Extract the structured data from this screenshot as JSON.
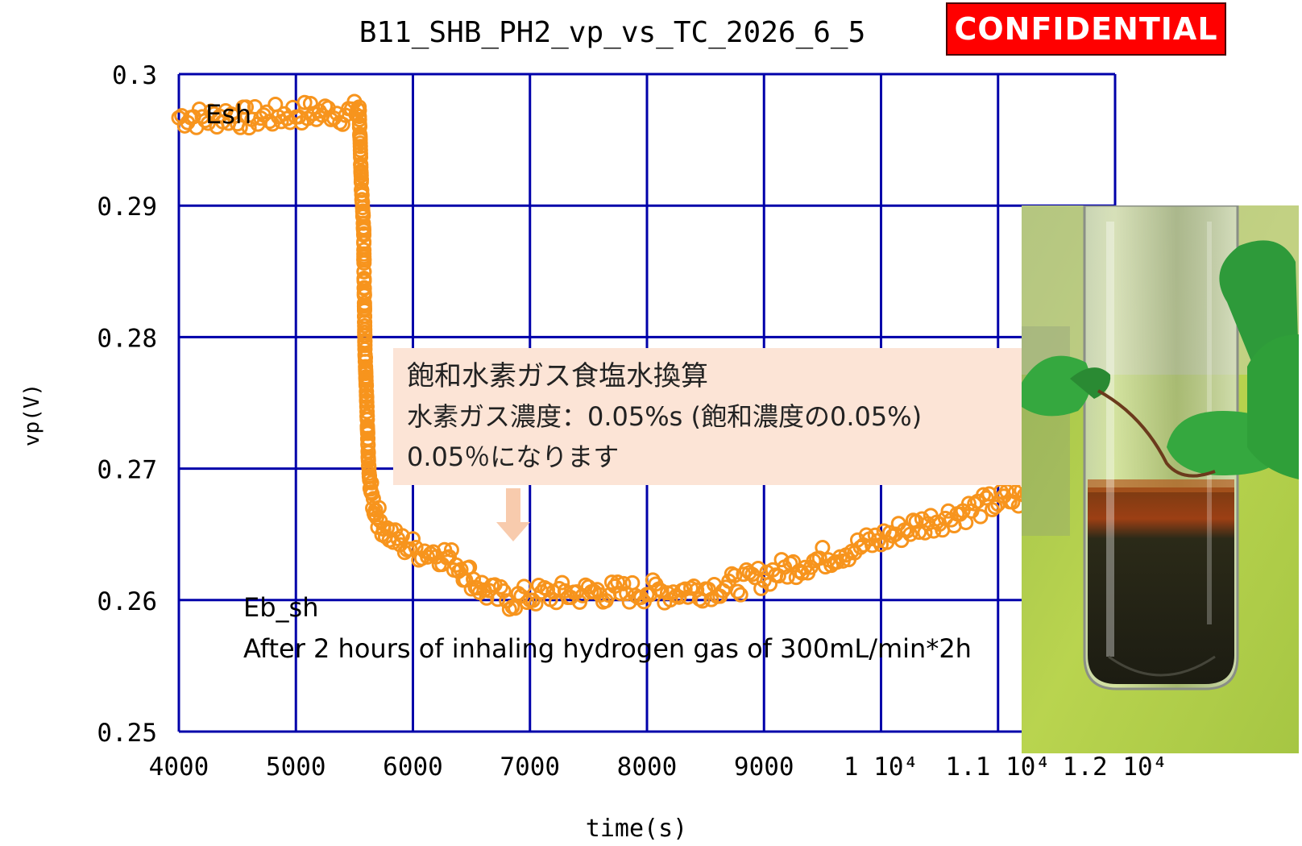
{
  "stamp": "CONFIDENTIAL",
  "callout": {
    "line1": "飽和水素ガス食塩水換算",
    "line2": "水素ガス濃度：0.05%s (飽和濃度の0.05%)",
    "line3": "0.05％になります"
  },
  "annotations": {
    "esh": "Esh",
    "eb_sh": "Eb_sh",
    "note": "After 2 hours of inhaling hydrogen gas of 300mL/min*2h"
  },
  "photo": {
    "icon": "test-tube-photo"
  },
  "chart_data": {
    "type": "scatter",
    "title": "B11_SHB_PH2_vp_vs_TC_2026_6_5",
    "xlabel": "time(s)",
    "ylabel": "vp(V)",
    "xlim": [
      4000,
      12000
    ],
    "ylim": [
      0.25,
      0.3
    ],
    "grid": true,
    "marker_color": "#f7941d",
    "axis_color": "#0000aa",
    "x_ticks": [
      4000,
      5000,
      6000,
      7000,
      8000,
      9000,
      10000,
      11000,
      12000
    ],
    "x_tick_labels": [
      "4000",
      "5000",
      "6000",
      "7000",
      "8000",
      "9000",
      "1 10⁴",
      "1.1 10⁴",
      "1.2 10⁴"
    ],
    "y_ticks": [
      0.25,
      0.26,
      0.27,
      0.28,
      0.29,
      0.3
    ],
    "y_tick_labels": [
      "0.25",
      "0.26",
      "0.27",
      "0.28",
      "0.29",
      "0.3"
    ],
    "series": [
      {
        "values": [
          [
            4000,
            0.2967
          ],
          [
            4100,
            0.2968
          ],
          [
            4200,
            0.2966
          ],
          [
            4300,
            0.2967
          ],
          [
            4400,
            0.2969
          ],
          [
            4500,
            0.2968
          ],
          [
            4600,
            0.2966
          ],
          [
            4700,
            0.2968
          ],
          [
            4800,
            0.2968
          ],
          [
            4900,
            0.2969
          ],
          [
            5000,
            0.297
          ],
          [
            5100,
            0.2971
          ],
          [
            5200,
            0.297
          ],
          [
            5300,
            0.2972
          ],
          [
            5400,
            0.297
          ],
          [
            5500,
            0.2971
          ],
          [
            5540,
            0.2975
          ],
          [
            5550,
            0.2945
          ],
          [
            5555,
            0.293
          ],
          [
            5560,
            0.2915
          ],
          [
            5565,
            0.2905
          ],
          [
            5570,
            0.2898
          ],
          [
            5575,
            0.289
          ],
          [
            5580,
            0.288
          ],
          [
            5583,
            0.2845
          ],
          [
            5586,
            0.2828
          ],
          [
            5590,
            0.279
          ],
          [
            5595,
            0.278
          ],
          [
            5600,
            0.2765
          ],
          [
            5605,
            0.2752
          ],
          [
            5610,
            0.2735
          ],
          [
            5615,
            0.272
          ],
          [
            5620,
            0.2705
          ],
          [
            5630,
            0.269
          ],
          [
            5650,
            0.2678
          ],
          [
            5680,
            0.2668
          ],
          [
            5720,
            0.266
          ],
          [
            5780,
            0.2652
          ],
          [
            5850,
            0.2646
          ],
          [
            5950,
            0.2641
          ],
          [
            6050,
            0.2638
          ],
          [
            6150,
            0.2637
          ],
          [
            6250,
            0.2635
          ],
          [
            6350,
            0.263
          ],
          [
            6450,
            0.2622
          ],
          [
            6550,
            0.2612
          ],
          [
            6650,
            0.2605
          ],
          [
            6750,
            0.2602
          ],
          [
            6850,
            0.26
          ],
          [
            6950,
            0.2602
          ],
          [
            7100,
            0.2604
          ],
          [
            7250,
            0.2605
          ],
          [
            7400,
            0.2605
          ],
          [
            7550,
            0.2606
          ],
          [
            7700,
            0.2606
          ],
          [
            7850,
            0.2606
          ],
          [
            8000,
            0.2607
          ],
          [
            8150,
            0.2606
          ],
          [
            8300,
            0.2607
          ],
          [
            8450,
            0.2608
          ],
          [
            8600,
            0.261
          ],
          [
            8750,
            0.2612
          ],
          [
            8900,
            0.2615
          ],
          [
            9050,
            0.262
          ],
          [
            9200,
            0.2624
          ],
          [
            9350,
            0.2628
          ],
          [
            9500,
            0.2632
          ],
          [
            9650,
            0.2636
          ],
          [
            9800,
            0.264
          ],
          [
            9950,
            0.2645
          ],
          [
            10100,
            0.265
          ],
          [
            10250,
            0.2655
          ],
          [
            10400,
            0.2659
          ],
          [
            10550,
            0.2663
          ],
          [
            10700,
            0.2667
          ],
          [
            10850,
            0.2671
          ],
          [
            11000,
            0.2675
          ],
          [
            11150,
            0.2677
          ],
          [
            11300,
            0.268
          ]
        ]
      }
    ]
  }
}
